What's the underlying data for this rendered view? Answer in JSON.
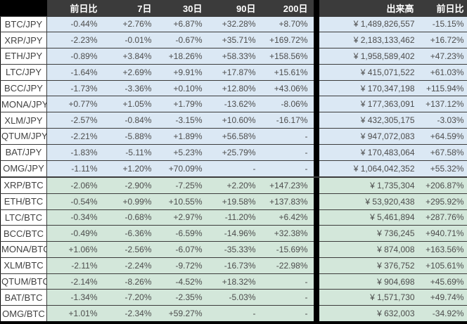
{
  "colors": {
    "header_bg": "#3b3b3b",
    "corner_bg": "#000000",
    "divider_bg": "#000000",
    "jpy_row_bg": "#dbe8f4",
    "btc_row_bg": "#d3e7da",
    "pair_cell_bg": "#ffffff",
    "grid_line": "#3c3c3c",
    "header_text": "#ffffff",
    "value_text": "#4d4d4d"
  },
  "chart_data": {
    "type": "table",
    "columns": [
      "前日比",
      "7日",
      "30日",
      "90日",
      "200日",
      "出来高",
      "前日比"
    ],
    "rows": [
      {
        "pair": "BTC/JPY",
        "section": "jpy",
        "changes": [
          "-0.44%",
          "+2.76%",
          "+6.87%",
          "+32.28%",
          "+8.70%"
        ],
        "volume": "¥ 1,489,826,557",
        "volume_change": "-15.15%"
      },
      {
        "pair": "XRP/JPY",
        "section": "jpy",
        "changes": [
          "-2.23%",
          "-0.01%",
          "-0.67%",
          "+35.71%",
          "+169.72%"
        ],
        "volume": "¥ 2,183,133,462",
        "volume_change": "+16.72%"
      },
      {
        "pair": "ETH/JPY",
        "section": "jpy",
        "changes": [
          "-0.89%",
          "+3.84%",
          "+18.26%",
          "+58.33%",
          "+158.56%"
        ],
        "volume": "¥ 1,958,589,402",
        "volume_change": "+47.23%"
      },
      {
        "pair": "LTC/JPY",
        "section": "jpy",
        "changes": [
          "-1.64%",
          "+2.69%",
          "+9.91%",
          "+17.87%",
          "+15.61%"
        ],
        "volume": "¥ 415,071,522",
        "volume_change": "+61.03%"
      },
      {
        "pair": "BCC/JPY",
        "section": "jpy",
        "changes": [
          "-1.73%",
          "-3.36%",
          "+0.10%",
          "+12.80%",
          "+43.06%"
        ],
        "volume": "¥ 170,347,198",
        "volume_change": "+115.94%"
      },
      {
        "pair": "MONA/JPY",
        "section": "jpy",
        "changes": [
          "+0.77%",
          "+1.05%",
          "+1.79%",
          "-13.62%",
          "-8.06%"
        ],
        "volume": "¥ 177,363,091",
        "volume_change": "+137.12%"
      },
      {
        "pair": "XLM/JPY",
        "section": "jpy",
        "changes": [
          "-2.57%",
          "-0.84%",
          "-3.15%",
          "+10.60%",
          "-16.17%"
        ],
        "volume": "¥ 432,305,175",
        "volume_change": "-3.03%"
      },
      {
        "pair": "QTUM/JPY",
        "section": "jpy",
        "changes": [
          "-2.21%",
          "-5.88%",
          "+1.89%",
          "+56.58%",
          "-"
        ],
        "volume": "¥ 947,072,083",
        "volume_change": "+64.59%"
      },
      {
        "pair": "BAT/JPY",
        "section": "jpy",
        "changes": [
          "-1.83%",
          "-5.11%",
          "+5.23%",
          "+25.79%",
          "-"
        ],
        "volume": "¥ 170,483,064",
        "volume_change": "+67.58%"
      },
      {
        "pair": "OMG/JPY",
        "section": "jpy",
        "changes": [
          "-1.11%",
          "+1.20%",
          "+70.09%",
          "-",
          "-"
        ],
        "volume": "¥ 1,064,042,352",
        "volume_change": "+55.32%"
      },
      {
        "pair": "XRP/BTC",
        "section": "btc",
        "changes": [
          "-2.06%",
          "-2.90%",
          "-7.25%",
          "+2.20%",
          "+147.23%"
        ],
        "volume": "¥ 1,735,304",
        "volume_change": "+206.87%"
      },
      {
        "pair": "ETH/BTC",
        "section": "btc",
        "changes": [
          "-0.54%",
          "+0.99%",
          "+10.55%",
          "+19.58%",
          "+137.83%"
        ],
        "volume": "¥ 53,920,438",
        "volume_change": "+295.92%"
      },
      {
        "pair": "LTC/BTC",
        "section": "btc",
        "changes": [
          "-0.34%",
          "-0.68%",
          "+2.97%",
          "-11.20%",
          "+6.42%"
        ],
        "volume": "¥ 5,461,894",
        "volume_change": "+287.76%"
      },
      {
        "pair": "BCC/BTC",
        "section": "btc",
        "changes": [
          "-0.49%",
          "-6.36%",
          "-6.59%",
          "-14.96%",
          "+32.38%"
        ],
        "volume": "¥ 736,245",
        "volume_change": "+940.71%"
      },
      {
        "pair": "MONA/BTC",
        "section": "btc",
        "changes": [
          "+1.06%",
          "-2.56%",
          "-6.07%",
          "-35.33%",
          "-15.69%"
        ],
        "volume": "¥ 874,008",
        "volume_change": "+163.56%"
      },
      {
        "pair": "XLM/BTC",
        "section": "btc",
        "changes": [
          "-2.11%",
          "-2.24%",
          "-9.72%",
          "-16.73%",
          "-22.98%"
        ],
        "volume": "¥ 376,752",
        "volume_change": "+105.61%"
      },
      {
        "pair": "QTUM/BTC",
        "section": "btc",
        "changes": [
          "-2.14%",
          "-8.26%",
          "-4.52%",
          "+18.32%",
          "-"
        ],
        "volume": "¥ 904,698",
        "volume_change": "+45.69%"
      },
      {
        "pair": "BAT/BTC",
        "section": "btc",
        "changes": [
          "-1.34%",
          "-7.20%",
          "-2.35%",
          "-5.03%",
          "-"
        ],
        "volume": "¥ 1,571,730",
        "volume_change": "+49.74%"
      },
      {
        "pair": "OMG/BTC",
        "section": "btc",
        "changes": [
          "+1.01%",
          "-2.34%",
          "+59.27%",
          "-",
          "-"
        ],
        "volume": "¥ 632,003",
        "volume_change": "-34.92%"
      }
    ]
  }
}
